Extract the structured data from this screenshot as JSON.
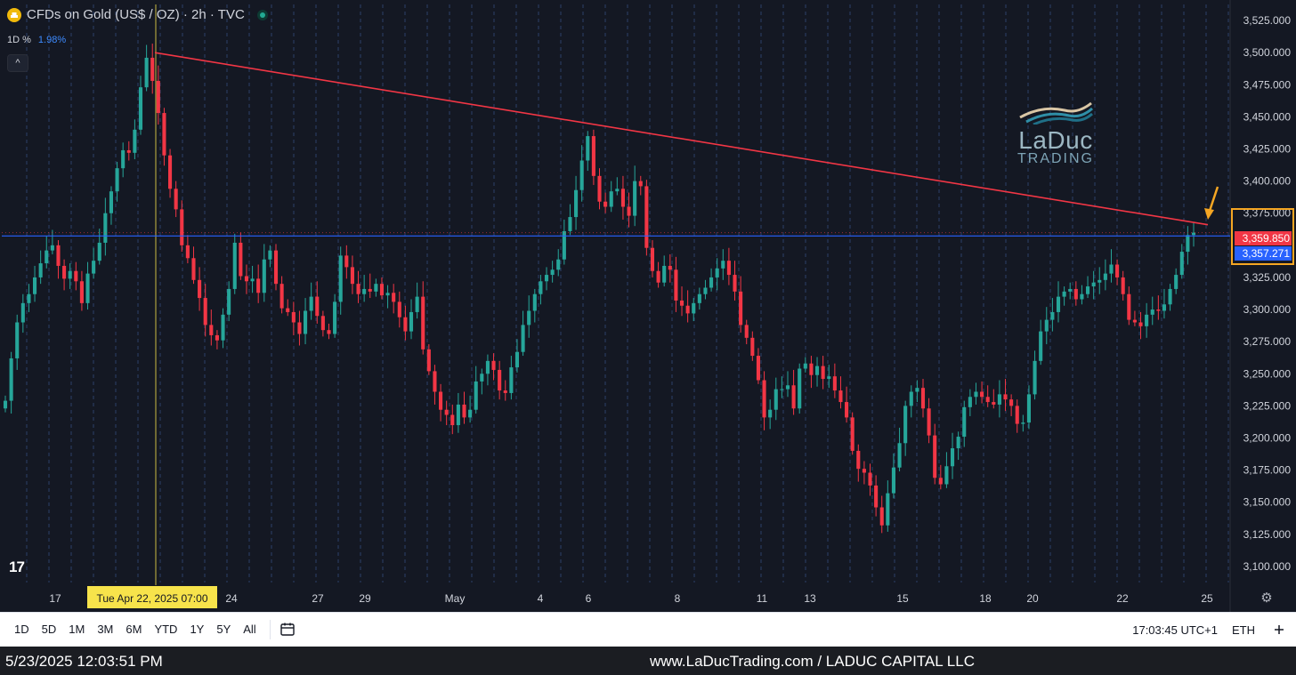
{
  "header": {
    "symbol_title": "CFDs on Gold (US$ / OZ) · 2h · TVC",
    "pct_label": "1D %",
    "pct_value": "1.98%"
  },
  "collapse_label": "^",
  "tv_logo": "17",
  "watermark": {
    "main": "LaDuc",
    "sub": "TRADING"
  },
  "toolbar": {
    "ranges": [
      "1D",
      "5D",
      "1M",
      "3M",
      "6M",
      "YTD",
      "1Y",
      "5Y",
      "All"
    ],
    "clock": "17:03:45 UTC+1",
    "session": "ETH"
  },
  "footer": {
    "datetime": "5/23/2025 12:03:51 PM",
    "site": "www.LaDucTrading.com / LADUC CAPITAL LLC"
  },
  "colors": {
    "background": "#141823",
    "up": "#26a69a",
    "down": "#f23645",
    "trendline": "#f23645",
    "support": "#2962ff",
    "annotation": "#f5a623",
    "crosshair_label": "#f7e34b"
  },
  "chart_data": {
    "type": "candlestick",
    "title": "CFDs on Gold (US$ / OZ) · 2h · TVC",
    "xlabel": "",
    "ylabel": "",
    "ylim": [
      3087.5,
      3537.5
    ],
    "y_ticks": [
      "3,525.000",
      "3,500.000",
      "3,475.000",
      "3,450.000",
      "3,425.000",
      "3,400.000",
      "3,375.000",
      "3,350.000",
      "3,325.000",
      "3,300.000",
      "3,275.000",
      "3,250.000",
      "3,225.000",
      "3,200.000",
      "3,175.000",
      "3,150.000",
      "3,125.000",
      "3,100.000"
    ],
    "x_tick_labels": [
      "17",
      "24",
      "27",
      "29",
      "May",
      "4",
      "6",
      "8",
      "11",
      "13",
      "15",
      "18",
      "20",
      "22",
      "25"
    ],
    "crosshair_label": "Tue Apr 22, 2025   07:00",
    "last_price": "3,359.850",
    "level_price": "3,357.271",
    "support_level": 3357.271,
    "trendline": {
      "start_value": 3500,
      "end_value": 3366
    },
    "grid": true,
    "closes": [
      3229,
      3262,
      3290,
      3305,
      3312,
      3325,
      3336,
      3346,
      3350,
      3334,
      3324,
      3330,
      3322,
      3305,
      3328,
      3338,
      3352,
      3375,
      3392,
      3410,
      3424,
      3422,
      3440,
      3473,
      3496,
      3478,
      3453,
      3420,
      3394,
      3378,
      3350,
      3340,
      3323,
      3309,
      3288,
      3280,
      3276,
      3296,
      3316,
      3352,
      3326,
      3322,
      3324,
      3313,
      3339,
      3346,
      3320,
      3301,
      3298,
      3290,
      3281,
      3299,
      3310,
      3295,
      3284,
      3281,
      3306,
      3342,
      3333,
      3320,
      3312,
      3316,
      3314,
      3320,
      3311,
      3313,
      3306,
      3294,
      3283,
      3298,
      3310,
      3269,
      3252,
      3236,
      3222,
      3218,
      3210,
      3226,
      3216,
      3222,
      3244,
      3250,
      3260,
      3253,
      3237,
      3235,
      3255,
      3267,
      3288,
      3299,
      3312,
      3322,
      3327,
      3331,
      3339,
      3361,
      3372,
      3393,
      3416,
      3435,
      3404,
      3384,
      3380,
      3392,
      3394,
      3380,
      3373,
      3400,
      3396,
      3348,
      3330,
      3321,
      3334,
      3331,
      3307,
      3303,
      3297,
      3305,
      3312,
      3317,
      3325,
      3332,
      3338,
      3327,
      3314,
      3288,
      3278,
      3264,
      3245,
      3216,
      3222,
      3238,
      3238,
      3241,
      3223,
      3254,
      3258,
      3249,
      3256,
      3246,
      3248,
      3237,
      3228,
      3216,
      3190,
      3176,
      3173,
      3163,
      3146,
      3132,
      3157,
      3177,
      3196,
      3225,
      3236,
      3239,
      3223,
      3202,
      3169,
      3164,
      3178,
      3192,
      3201,
      3224,
      3232,
      3236,
      3232,
      3228,
      3226,
      3234,
      3230,
      3225,
      3211,
      3212,
      3234,
      3260,
      3283,
      3292,
      3298,
      3310,
      3314,
      3316,
      3308,
      3312,
      3318,
      3321,
      3323,
      3328,
      3335,
      3325,
      3312,
      3292,
      3290,
      3287,
      3296,
      3300,
      3299,
      3304,
      3316,
      3327,
      3345,
      3358,
      3359.85
    ]
  }
}
